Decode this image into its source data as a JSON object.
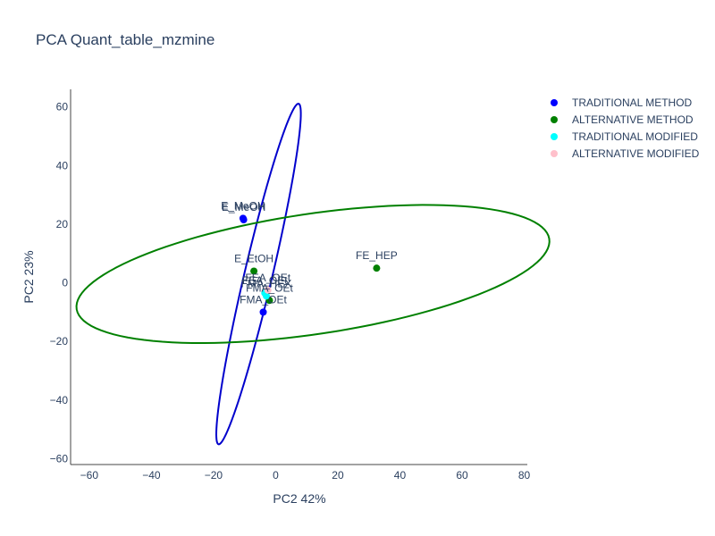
{
  "chart_data": {
    "type": "scatter",
    "title": "PCA Quant_table_mzmine",
    "xlabel": "PC2 42%",
    "ylabel": "PC2 23%",
    "xlim": [
      -66,
      81
    ],
    "ylim": [
      -62,
      66
    ],
    "xticks": [
      -60,
      -40,
      -20,
      0,
      20,
      40,
      60,
      80
    ],
    "xtick_labels": [
      "−60",
      "−40",
      "−20",
      "0",
      "20",
      "40",
      "60",
      "80"
    ],
    "yticks": [
      -60,
      -40,
      -20,
      0,
      20,
      40,
      60
    ],
    "ytick_labels": [
      "−60",
      "−40",
      "−20",
      "0",
      "20",
      "40",
      "60"
    ],
    "grid": false,
    "legend_position": "top-right",
    "series": [
      {
        "name": "TRADITIONAL METHOD",
        "color": "#0000ff",
        "points": [
          {
            "x": -10.5,
            "y": 22.0,
            "label": "E_MeOH"
          },
          {
            "x": -10.3,
            "y": 21.5,
            "label": "E_MeOH"
          },
          {
            "x": -4.0,
            "y": -10.0,
            "label": "FMA_OEt"
          }
        ]
      },
      {
        "name": "ALTERNATIVE METHOD",
        "color": "#008000",
        "points": [
          {
            "x": 32.5,
            "y": 5.0,
            "label": "FE_HEP"
          },
          {
            "x": -7.0,
            "y": 4.0,
            "label": "E_EtOH"
          },
          {
            "x": -2.0,
            "y": -6.0,
            "label": "FMA_OEt"
          }
        ]
      },
      {
        "name": "TRADITIONAL MODIFIED",
        "color": "#00ffff",
        "points": [
          {
            "x": -3.0,
            "y": -4.5,
            "label": "FMA_HEX"
          },
          {
            "x": -3.5,
            "y": -3.5,
            "label": "FEA_OEt"
          }
        ]
      },
      {
        "name": "ALTERNATIVE MODIFIED",
        "color": "#ffc0cb",
        "points": [
          {
            "x": -2.5,
            "y": -2.5,
            "label": "FEA_OEt"
          }
        ]
      }
    ],
    "ellipses": [
      {
        "series": "TRADITIONAL METHOD",
        "color": "#0000cc",
        "cx": -5.5,
        "cy": 3.0,
        "rx": 59.5,
        "ry": 4.5,
        "angle_deg": 77.5
      },
      {
        "series": "ALTERNATIVE METHOD",
        "color": "#008000",
        "cx": 12.0,
        "cy": 3.0,
        "rx": 77.0,
        "ry": 20.5,
        "angle_deg": 9.0
      }
    ]
  }
}
